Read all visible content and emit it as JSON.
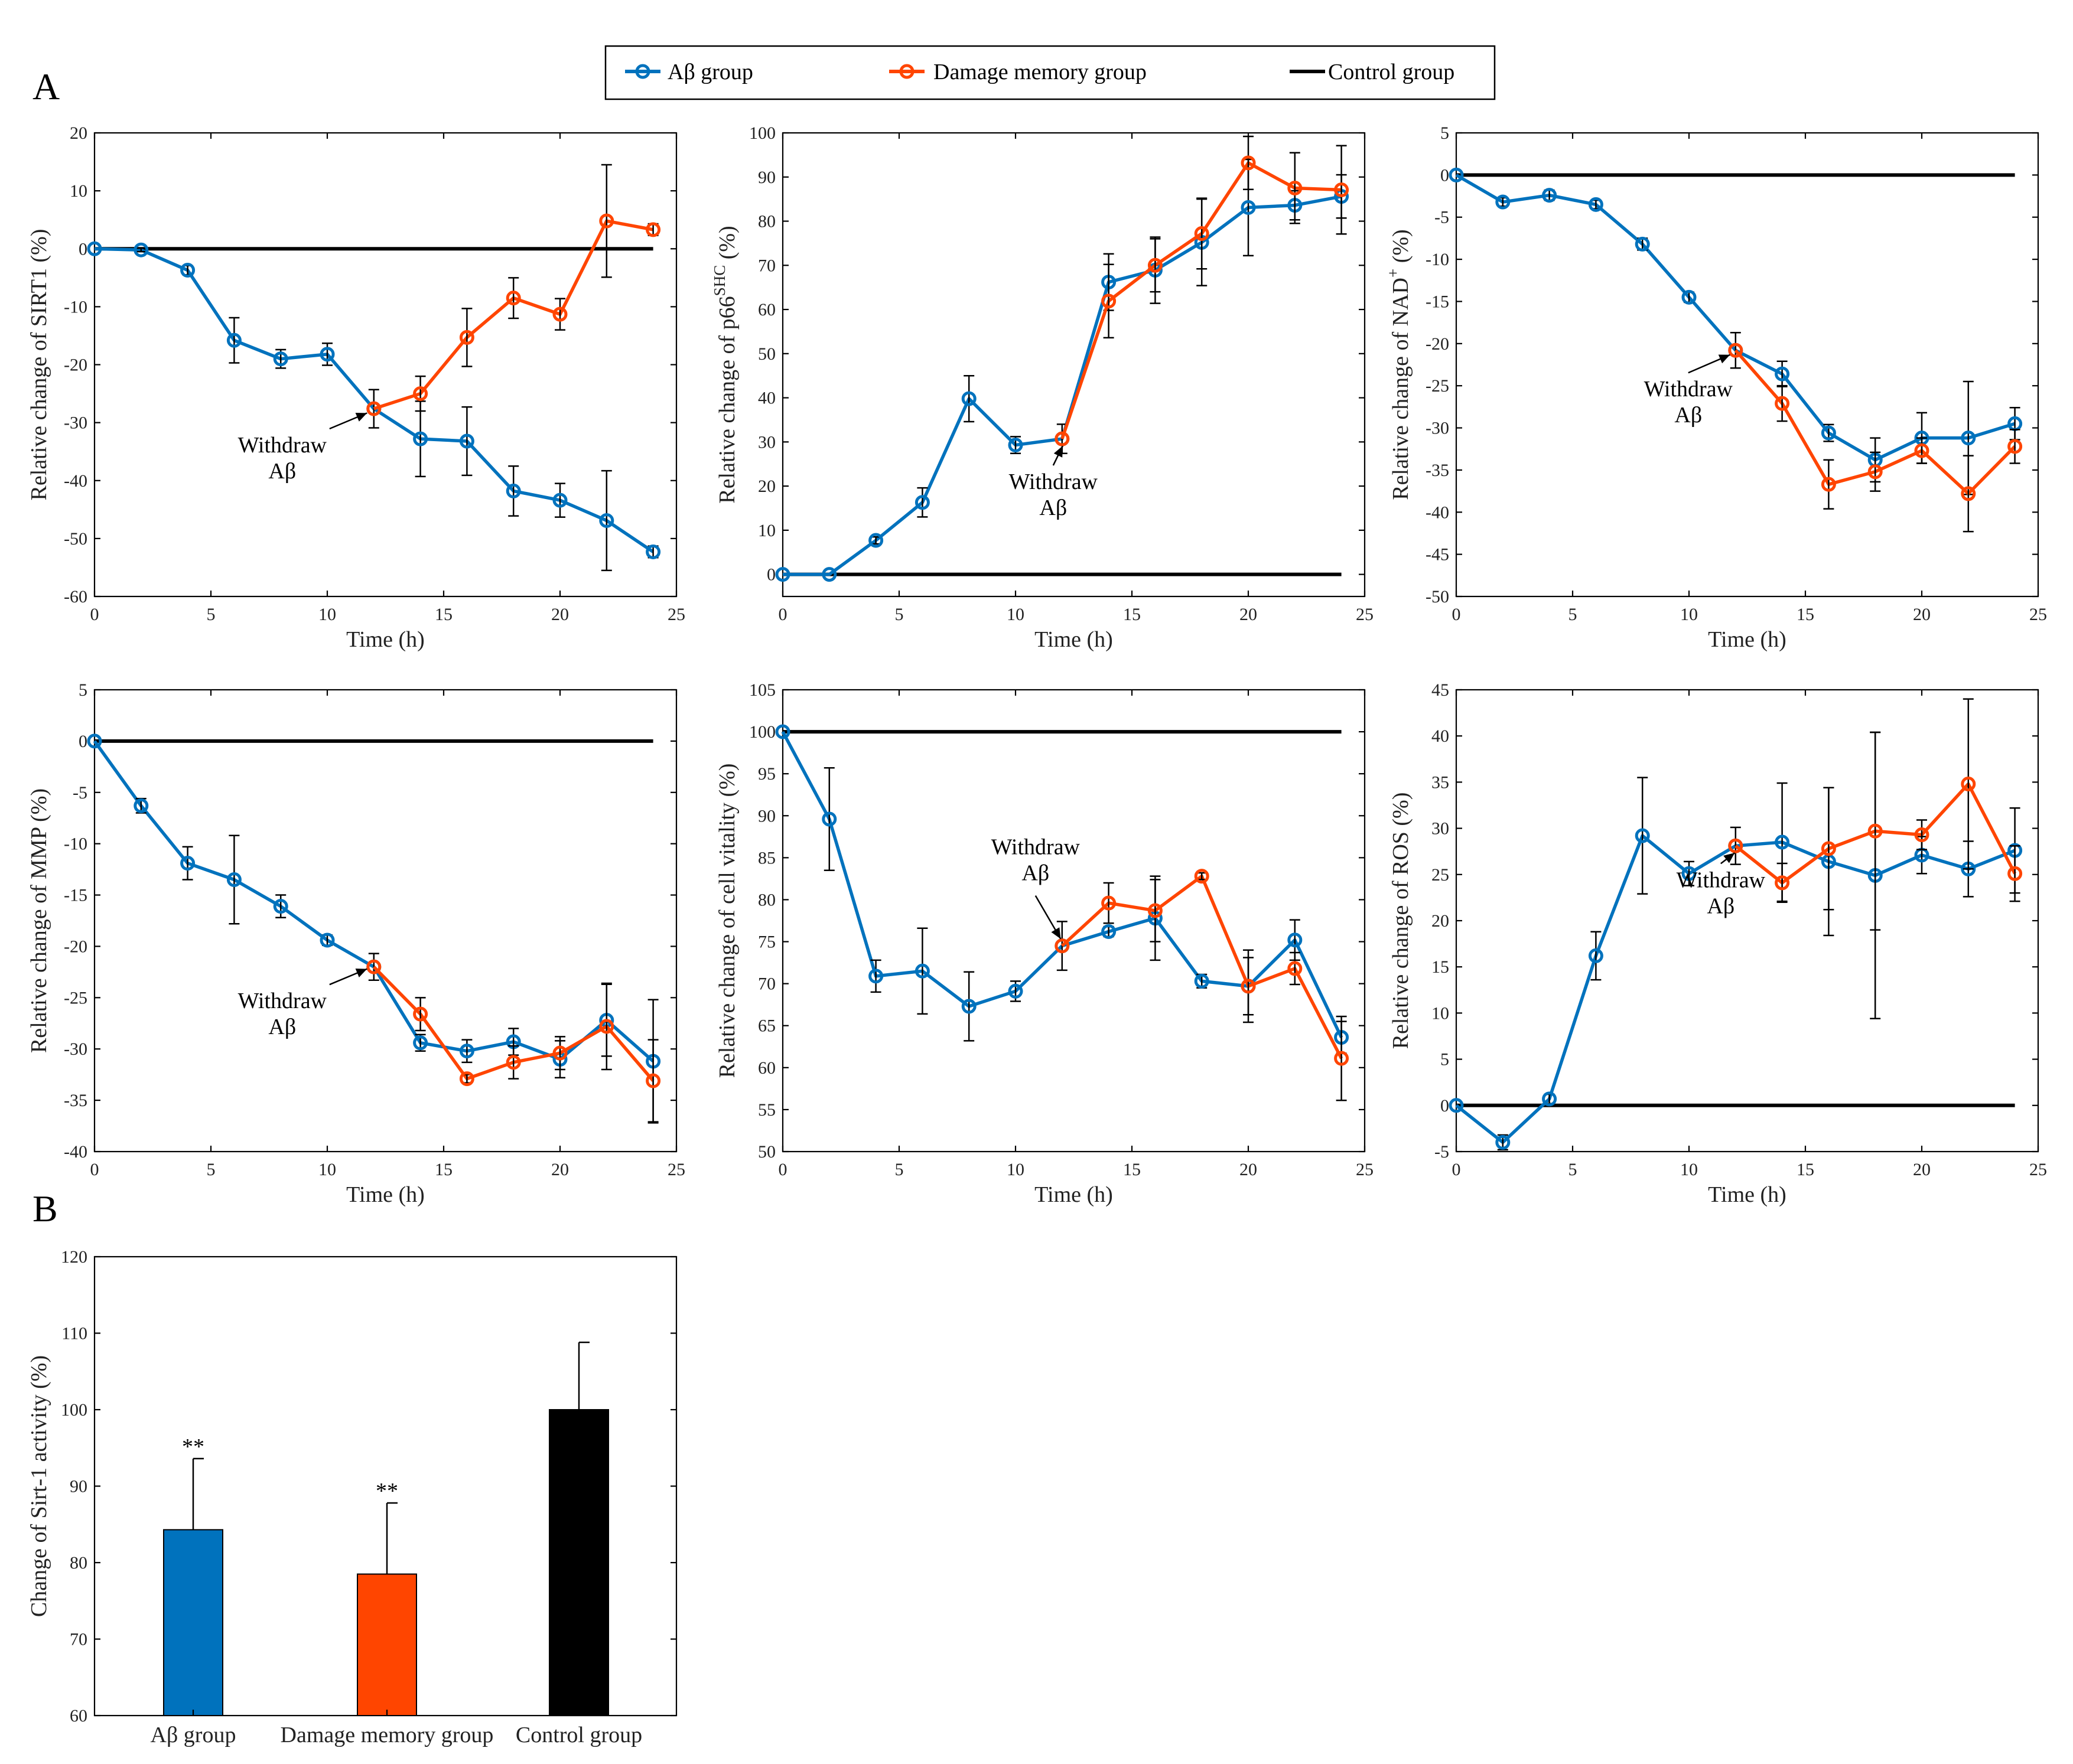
{
  "colors": {
    "abeta": "#0072BD",
    "damage": "#FF4500",
    "control": "#000000"
  },
  "panel_labels": {
    "a": "A",
    "b": "B"
  },
  "legend": {
    "items": [
      {
        "name": "Aβ group",
        "key": "abeta"
      },
      {
        "name": "Damage memory group",
        "key": "damage"
      },
      {
        "name": "Control group",
        "key": "control"
      }
    ]
  },
  "chart_data": [
    {
      "id": "sirt1",
      "type": "line",
      "xlabel": "Time (h)",
      "ylabel": "Relative change of SIRT1 (%)",
      "xlim": [
        0,
        25
      ],
      "ylim": [
        -60,
        20
      ],
      "xticks": [
        0,
        5,
        10,
        15,
        20,
        25
      ],
      "yticks": [
        -60,
        -50,
        -40,
        -30,
        -20,
        -10,
        0,
        10,
        20
      ],
      "control_value": 0,
      "annotation": {
        "lines": [
          "Withdraw",
          "Aβ"
        ],
        "x": 12,
        "y": -28
      },
      "series": [
        {
          "name": "Aβ group",
          "key": "abeta",
          "x": [
            0,
            2,
            4,
            6,
            8,
            10,
            12,
            14,
            16,
            18,
            20,
            22,
            24
          ],
          "y": [
            0,
            -0.2,
            -3.7,
            -15.8,
            -19,
            -18.2,
            -27.6,
            -32.8,
            -33.2,
            -41.8,
            -43.4,
            -46.9,
            -52.3
          ],
          "err": [
            0,
            0.3,
            0.8,
            3.9,
            1.6,
            1.9,
            3.3,
            6.5,
            5.9,
            4.3,
            2.9,
            8.6,
            1.0
          ]
        },
        {
          "name": "Damage memory group",
          "key": "damage",
          "x": [
            12,
            14,
            16,
            18,
            20,
            22,
            24
          ],
          "y": [
            -27.6,
            -25,
            -15.3,
            -8.5,
            -11.3,
            4.8,
            3.3
          ],
          "err": [
            0,
            3,
            5,
            3.5,
            2.7,
            9.7,
            1.0
          ]
        }
      ]
    },
    {
      "id": "p66shc",
      "type": "line",
      "xlabel": "Time (h)",
      "ylabel_main": "Relative change of p66",
      "ylabel_sup": "SHC",
      "ylabel_tail": " (%)",
      "xlim": [
        0,
        25
      ],
      "ylim": [
        -5,
        100
      ],
      "xticks": [
        0,
        5,
        10,
        15,
        20,
        25
      ],
      "yticks": [
        0,
        10,
        20,
        30,
        40,
        50,
        60,
        70,
        80,
        90,
        100
      ],
      "control_value": 0,
      "annotation": {
        "lines": [
          "Withdraw",
          "Aβ"
        ],
        "x": 12,
        "y": 30.7
      },
      "series": [
        {
          "name": "Aβ group",
          "key": "abeta",
          "x": [
            0,
            2,
            4,
            6,
            8,
            10,
            12,
            14,
            16,
            18,
            20,
            22,
            24
          ],
          "y": [
            0,
            0,
            7.7,
            16.3,
            39.8,
            29.3,
            30.7,
            66.2,
            68.9,
            75.2,
            83.1,
            83.6,
            85.6
          ],
          "err": [
            0,
            0,
            0.8,
            3.3,
            5.2,
            1.9,
            3.3,
            6.4,
            7.5,
            9.8,
            10.9,
            3.3,
            4.9
          ]
        },
        {
          "name": "Damage memory group",
          "key": "damage",
          "x": [
            12,
            14,
            16,
            18,
            20,
            22,
            24
          ],
          "y": [
            30.7,
            61.9,
            70,
            77.2,
            93.2,
            87.5,
            87.1
          ],
          "err": [
            0,
            8.3,
            6,
            8,
            6,
            8,
            10
          ]
        }
      ]
    },
    {
      "id": "nad",
      "type": "line",
      "xlabel": "Time (h)",
      "ylabel_main": "Relative change of NAD",
      "ylabel_sup": "+",
      "ylabel_tail": " (%)",
      "xlim": [
        0,
        25
      ],
      "ylim": [
        -50,
        5
      ],
      "xticks": [
        0,
        5,
        10,
        15,
        20,
        25
      ],
      "yticks": [
        -50,
        -45,
        -40,
        -35,
        -30,
        -25,
        -20,
        -15,
        -10,
        -5,
        0,
        5
      ],
      "control_value": 0,
      "annotation": {
        "lines": [
          "Withdraw",
          "Aβ"
        ],
        "x": 12,
        "y": -20.8
      },
      "series": [
        {
          "name": "Aβ group",
          "key": "abeta",
          "x": [
            0,
            2,
            4,
            6,
            8,
            10,
            12,
            14,
            16,
            18,
            20,
            22,
            24
          ],
          "y": [
            0,
            -3.2,
            -2.4,
            -3.5,
            -8.2,
            -14.5,
            -20.8,
            -23.6,
            -30.6,
            -33.8,
            -31.2,
            -31.2,
            -29.5
          ],
          "err": [
            0,
            0.5,
            0.6,
            0.5,
            0.7,
            0.6,
            2.1,
            1.5,
            1.0,
            2.6,
            3.0,
            6.7,
            1.9
          ]
        },
        {
          "name": "Damage memory group",
          "key": "damage",
          "x": [
            12,
            14,
            16,
            18,
            20,
            22,
            24
          ],
          "y": [
            -20.8,
            -27.1,
            -36.7,
            -35.2,
            -32.7,
            -37.8,
            -32.2
          ],
          "err": [
            0,
            2.1,
            2.9,
            2.3,
            1.5,
            4.5,
            2.0
          ]
        }
      ]
    },
    {
      "id": "mmp",
      "type": "line",
      "xlabel": "Time (h)",
      "ylabel": "Relative change of MMP (%)",
      "xlim": [
        0,
        25
      ],
      "ylim": [
        -40,
        5
      ],
      "xticks": [
        0,
        5,
        10,
        15,
        20,
        25
      ],
      "yticks": [
        -40,
        -35,
        -30,
        -25,
        -20,
        -15,
        -10,
        -5,
        0,
        5
      ],
      "control_value": 0,
      "annotation": {
        "lines": [
          "Withdraw",
          "Aβ"
        ],
        "x": 12,
        "y": -22
      },
      "series": [
        {
          "name": "Aβ group",
          "key": "abeta",
          "x": [
            0,
            2,
            4,
            6,
            8,
            10,
            12,
            14,
            16,
            18,
            20,
            22,
            24
          ],
          "y": [
            0,
            -6.3,
            -11.9,
            -13.5,
            -16.1,
            -19.4,
            -22,
            -29.4,
            -30.2,
            -29.3,
            -31,
            -27.2,
            -31.2
          ],
          "err": [
            0,
            0.7,
            1.6,
            4.3,
            1.1,
            0.5,
            1.3,
            0.8,
            1.1,
            1.3,
            1.8,
            3.5,
            6.0
          ]
        },
        {
          "name": "Damage memory group",
          "key": "damage",
          "x": [
            12,
            14,
            16,
            18,
            20,
            22,
            24
          ],
          "y": [
            -22,
            -26.6,
            -32.9,
            -31.3,
            -30.4,
            -27.8,
            -33.1
          ],
          "err": [
            0,
            1.6,
            0.4,
            1.6,
            1.6,
            4.2,
            4.0
          ]
        }
      ]
    },
    {
      "id": "vitality",
      "type": "line",
      "xlabel": "Time (h)",
      "ylabel": "Relative change of cell vitality (%)",
      "xlim": [
        0,
        25
      ],
      "ylim": [
        50,
        105
      ],
      "xticks": [
        0,
        5,
        10,
        15,
        20,
        25
      ],
      "yticks": [
        50,
        55,
        60,
        65,
        70,
        75,
        80,
        85,
        90,
        95,
        100,
        105
      ],
      "control_value": 100,
      "annotation": {
        "lines": [
          "Withdraw",
          "Aβ"
        ],
        "x": 12,
        "y": 74.5
      },
      "series": [
        {
          "name": "Aβ group",
          "key": "abeta",
          "x": [
            0,
            2,
            4,
            6,
            8,
            10,
            12,
            14,
            16,
            18,
            20,
            22,
            24
          ],
          "y": [
            100,
            89.6,
            70.9,
            71.5,
            67.3,
            69.1,
            74.5,
            76.2,
            77.8,
            70.3,
            69.7,
            75.2,
            63.6
          ],
          "err": [
            0,
            6.1,
            1.9,
            5.1,
            4.1,
            1.2,
            2.9,
            0.6,
            5.0,
            0.8,
            4.3,
            2.4,
            1.9
          ]
        },
        {
          "name": "Damage memory group",
          "key": "damage",
          "x": [
            12,
            14,
            16,
            18,
            20,
            22,
            24
          ],
          "y": [
            74.5,
            79.6,
            78.7,
            82.8,
            69.7,
            71.8,
            61.1
          ],
          "err": [
            0,
            2.4,
            3.7,
            0.4,
            3.4,
            1.9,
            5.0
          ]
        }
      ]
    },
    {
      "id": "ros",
      "type": "line",
      "xlabel": "Time (h)",
      "ylabel": "Relative change of ROS (%)",
      "xlim": [
        0,
        25
      ],
      "ylim": [
        -5,
        45
      ],
      "xticks": [
        0,
        5,
        10,
        15,
        20,
        25
      ],
      "yticks": [
        -5,
        0,
        5,
        10,
        15,
        20,
        25,
        30,
        35,
        40,
        45
      ],
      "control_value": 0,
      "annotation": {
        "lines": [
          "Withdraw",
          "Aβ"
        ],
        "x": 12,
        "y": 28.1
      },
      "series": [
        {
          "name": "Aβ group",
          "key": "abeta",
          "x": [
            0,
            2,
            4,
            6,
            8,
            10,
            12,
            14,
            16,
            18,
            20,
            22,
            24
          ],
          "y": [
            0,
            -4,
            0.7,
            16.2,
            29.2,
            25.1,
            28.1,
            28.5,
            26.4,
            24.9,
            27.1,
            25.6,
            27.6
          ],
          "err": [
            0,
            0.8,
            0.5,
            2.6,
            6.3,
            1.3,
            2.0,
            6.4,
            8.0,
            15.5,
            2.0,
            3.0,
            4.6
          ]
        },
        {
          "name": "Damage memory group",
          "key": "damage",
          "x": [
            12,
            14,
            16,
            18,
            20,
            22,
            24
          ],
          "y": [
            28.1,
            24.1,
            27.8,
            29.7,
            29.3,
            34.8,
            25.1
          ],
          "err": [
            0,
            2.1,
            6.6,
            10.7,
            1.6,
            9.2,
            3.0
          ]
        }
      ]
    },
    {
      "id": "sirt1_activity",
      "type": "bar",
      "ylabel": "Change of Sirt-1 activity (%)",
      "ylim": [
        60,
        120
      ],
      "yticks": [
        60,
        70,
        80,
        90,
        100,
        110,
        120
      ],
      "categories": [
        "Aβ group",
        "Damage memory group",
        "Control group"
      ],
      "keys": [
        "abeta",
        "damage",
        "control"
      ],
      "values": [
        84.3,
        78.5,
        100
      ],
      "err": [
        9.3,
        9.3,
        8.8
      ],
      "significance": [
        "**",
        "**",
        ""
      ]
    }
  ]
}
